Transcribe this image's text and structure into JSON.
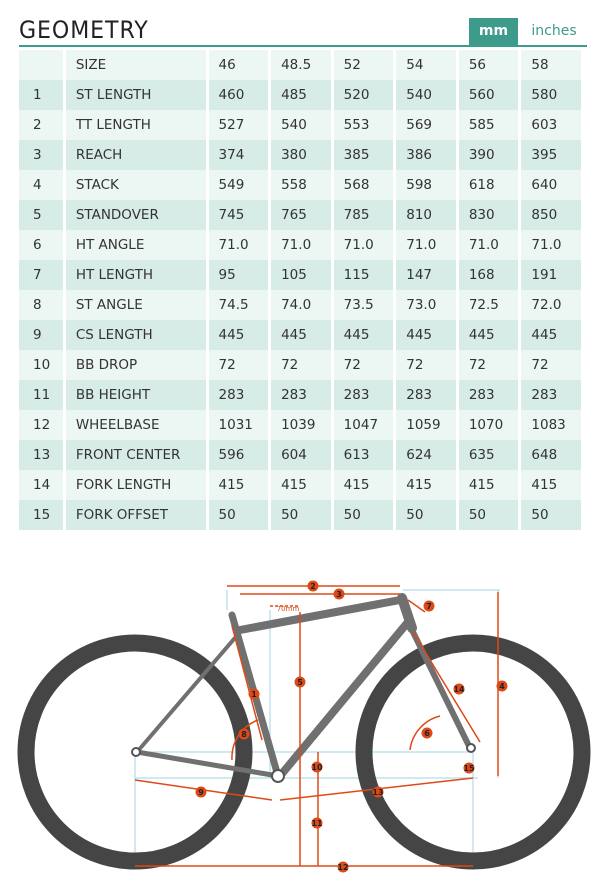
{
  "header": {
    "title": "GEOMETRY",
    "units": {
      "mm_label": "mm",
      "inches_label": "inches",
      "selected": "mm"
    }
  },
  "table": {
    "header_label": "SIZE",
    "sizes": [
      "46",
      "48.5",
      "52",
      "54",
      "56",
      "58"
    ],
    "rows": [
      {
        "num": "1",
        "name": "ST LENGTH",
        "values": [
          "460",
          "485",
          "520",
          "540",
          "560",
          "580"
        ]
      },
      {
        "num": "2",
        "name": "TT LENGTH",
        "values": [
          "527",
          "540",
          "553",
          "569",
          "585",
          "603"
        ]
      },
      {
        "num": "3",
        "name": "REACH",
        "values": [
          "374",
          "380",
          "385",
          "386",
          "390",
          "395"
        ]
      },
      {
        "num": "4",
        "name": "STACK",
        "values": [
          "549",
          "558",
          "568",
          "598",
          "618",
          "640"
        ]
      },
      {
        "num": "5",
        "name": "STANDOVER",
        "values": [
          "745",
          "765",
          "785",
          "810",
          "830",
          "850"
        ]
      },
      {
        "num": "6",
        "name": "HT ANGLE",
        "values": [
          "71.0",
          "71.0",
          "71.0",
          "71.0",
          "71.0",
          "71.0"
        ]
      },
      {
        "num": "7",
        "name": "HT LENGTH",
        "values": [
          "95",
          "105",
          "115",
          "147",
          "168",
          "191"
        ]
      },
      {
        "num": "8",
        "name": "ST ANGLE",
        "values": [
          "74.5",
          "74.0",
          "73.5",
          "73.0",
          "72.5",
          "72.0"
        ]
      },
      {
        "num": "9",
        "name": "CS LENGTH",
        "values": [
          "445",
          "445",
          "445",
          "445",
          "445",
          "445"
        ]
      },
      {
        "num": "10",
        "name": "BB DROP",
        "values": [
          "72",
          "72",
          "72",
          "72",
          "72",
          "72"
        ]
      },
      {
        "num": "11",
        "name": "BB HEIGHT",
        "values": [
          "283",
          "283",
          "283",
          "283",
          "283",
          "283"
        ]
      },
      {
        "num": "12",
        "name": "WHEELBASE",
        "values": [
          "1031",
          "1039",
          "1047",
          "1059",
          "1070",
          "1083"
        ]
      },
      {
        "num": "13",
        "name": "FRONT CENTER",
        "values": [
          "596",
          "604",
          "613",
          "624",
          "635",
          "648"
        ]
      },
      {
        "num": "14",
        "name": "FORK LENGTH",
        "values": [
          "415",
          "415",
          "415",
          "415",
          "415",
          "415"
        ]
      },
      {
        "num": "15",
        "name": "FORK OFFSET",
        "values": [
          "50",
          "50",
          "50",
          "50",
          "50",
          "50"
        ]
      }
    ]
  },
  "diagram": {
    "offset_label": "70mm",
    "markers": [
      "1",
      "2",
      "3",
      "4",
      "5",
      "6",
      "7",
      "8",
      "9",
      "10",
      "11",
      "12",
      "13",
      "14",
      "15"
    ]
  },
  "colors": {
    "accent": "#3d9b8b",
    "row_dark": "#d7ece7",
    "row_light": "#ecf6f3",
    "marker": "#dd4a17",
    "frame": "#6b6b6b",
    "tire": "#454545",
    "guide": "#9fd6e6"
  }
}
